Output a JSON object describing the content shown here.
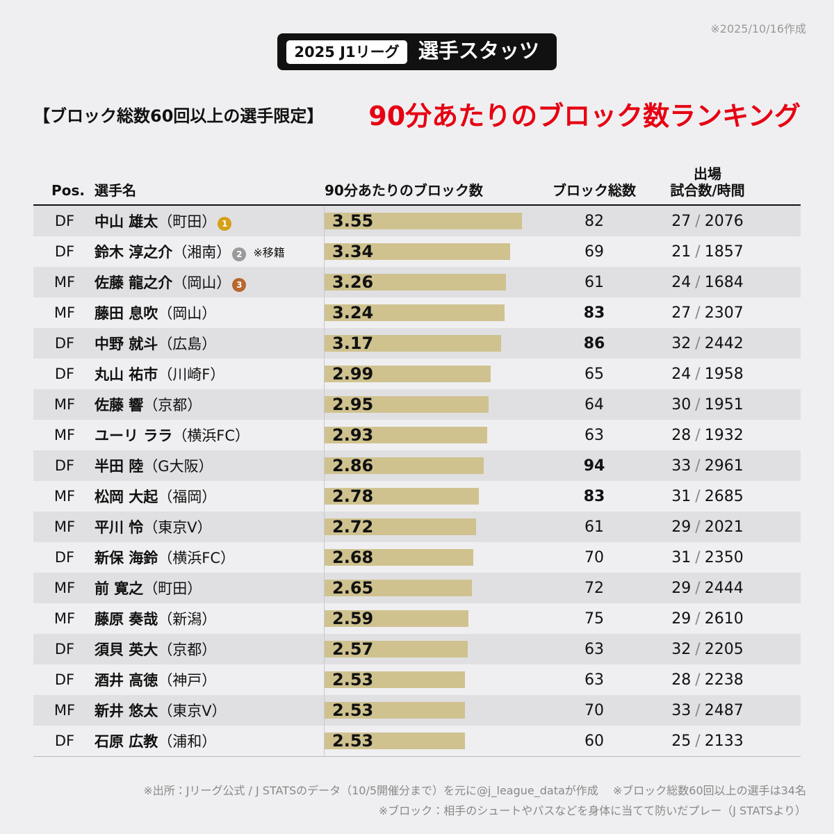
{
  "date_note": "※2025/10/16作成",
  "badge": {
    "tag": "2025 J1リーグ",
    "label": "選手スタッツ"
  },
  "subtitle": "【ブロック総数60回以上の選手限定】",
  "title": "90分あたりのブロック数ランキング",
  "columns": {
    "pos": "Pos.",
    "name": "選手名",
    "per90": "90分あたりのブロック数",
    "total": "ブロック総数",
    "apps": [
      "出場",
      "試合数/時間"
    ]
  },
  "separator": "/",
  "bar_color": "#cfc28f",
  "rows": [
    {
      "pos": "DF",
      "name": "中山 雄太",
      "club": "（町田）",
      "medal": "1",
      "per90": 3.55,
      "total": 82,
      "total_bold": false,
      "matches": 27,
      "minutes": 2076
    },
    {
      "pos": "DF",
      "name": "鈴木 淳之介",
      "club": "（湘南）",
      "medal": "2",
      "note": "※移籍",
      "per90": 3.34,
      "total": 69,
      "total_bold": false,
      "matches": 21,
      "minutes": 1857
    },
    {
      "pos": "MF",
      "name": "佐藤 龍之介",
      "club": "（岡山）",
      "medal": "3",
      "per90": 3.26,
      "total": 61,
      "total_bold": false,
      "matches": 24,
      "minutes": 1684
    },
    {
      "pos": "MF",
      "name": "藤田 息吹",
      "club": "（岡山）",
      "per90": 3.24,
      "total": 83,
      "total_bold": true,
      "matches": 27,
      "minutes": 2307
    },
    {
      "pos": "DF",
      "name": "中野 就斗",
      "club": "（広島）",
      "per90": 3.17,
      "total": 86,
      "total_bold": true,
      "matches": 32,
      "minutes": 2442
    },
    {
      "pos": "DF",
      "name": "丸山 祐市",
      "club": "（川崎F）",
      "per90": 2.99,
      "total": 65,
      "total_bold": false,
      "matches": 24,
      "minutes": 1958
    },
    {
      "pos": "MF",
      "name": "佐藤 響",
      "club": "（京都）",
      "per90": 2.95,
      "total": 64,
      "total_bold": false,
      "matches": 30,
      "minutes": 1951
    },
    {
      "pos": "MF",
      "name": "ユーリ ララ",
      "club": "（横浜FC）",
      "per90": 2.93,
      "total": 63,
      "total_bold": false,
      "matches": 28,
      "minutes": 1932
    },
    {
      "pos": "DF",
      "name": "半田 陸",
      "club": "（G大阪）",
      "per90": 2.86,
      "total": 94,
      "total_bold": true,
      "matches": 33,
      "minutes": 2961
    },
    {
      "pos": "MF",
      "name": "松岡 大起",
      "club": "（福岡）",
      "per90": 2.78,
      "total": 83,
      "total_bold": true,
      "matches": 31,
      "minutes": 2685
    },
    {
      "pos": "MF",
      "name": "平川 怜",
      "club": "（東京V）",
      "per90": 2.72,
      "total": 61,
      "total_bold": false,
      "matches": 29,
      "minutes": 2021
    },
    {
      "pos": "DF",
      "name": "新保 海鈴",
      "club": "（横浜FC）",
      "per90": 2.68,
      "total": 70,
      "total_bold": false,
      "matches": 31,
      "minutes": 2350
    },
    {
      "pos": "MF",
      "name": "前 寛之",
      "club": "（町田）",
      "per90": 2.65,
      "total": 72,
      "total_bold": false,
      "matches": 29,
      "minutes": 2444
    },
    {
      "pos": "MF",
      "name": "藤原 奏哉",
      "club": "（新潟）",
      "per90": 2.59,
      "total": 75,
      "total_bold": false,
      "matches": 29,
      "minutes": 2610
    },
    {
      "pos": "DF",
      "name": "須貝 英大",
      "club": "（京都）",
      "per90": 2.57,
      "total": 63,
      "total_bold": false,
      "matches": 32,
      "minutes": 2205
    },
    {
      "pos": "DF",
      "name": "酒井 高徳",
      "club": "（神戸）",
      "per90": 2.53,
      "total": 63,
      "total_bold": false,
      "matches": 28,
      "minutes": 2238
    },
    {
      "pos": "MF",
      "name": "新井 悠太",
      "club": "（東京V）",
      "per90": 2.53,
      "total": 70,
      "total_bold": false,
      "matches": 33,
      "minutes": 2487
    },
    {
      "pos": "DF",
      "name": "石原 広教",
      "club": "（浦和）",
      "per90": 2.53,
      "total": 60,
      "total_bold": false,
      "matches": 25,
      "minutes": 2133
    }
  ],
  "footnotes": [
    "※出所：Jリーグ公式 / J STATSのデータ（10/5開催分まで）を元に@j_league_dataが作成　 ※ブロック総数60回以上の選手は34名",
    "※ブロック：相手のシュートやパスなどを身体に当てて防いだプレー（J STATSより）"
  ]
}
